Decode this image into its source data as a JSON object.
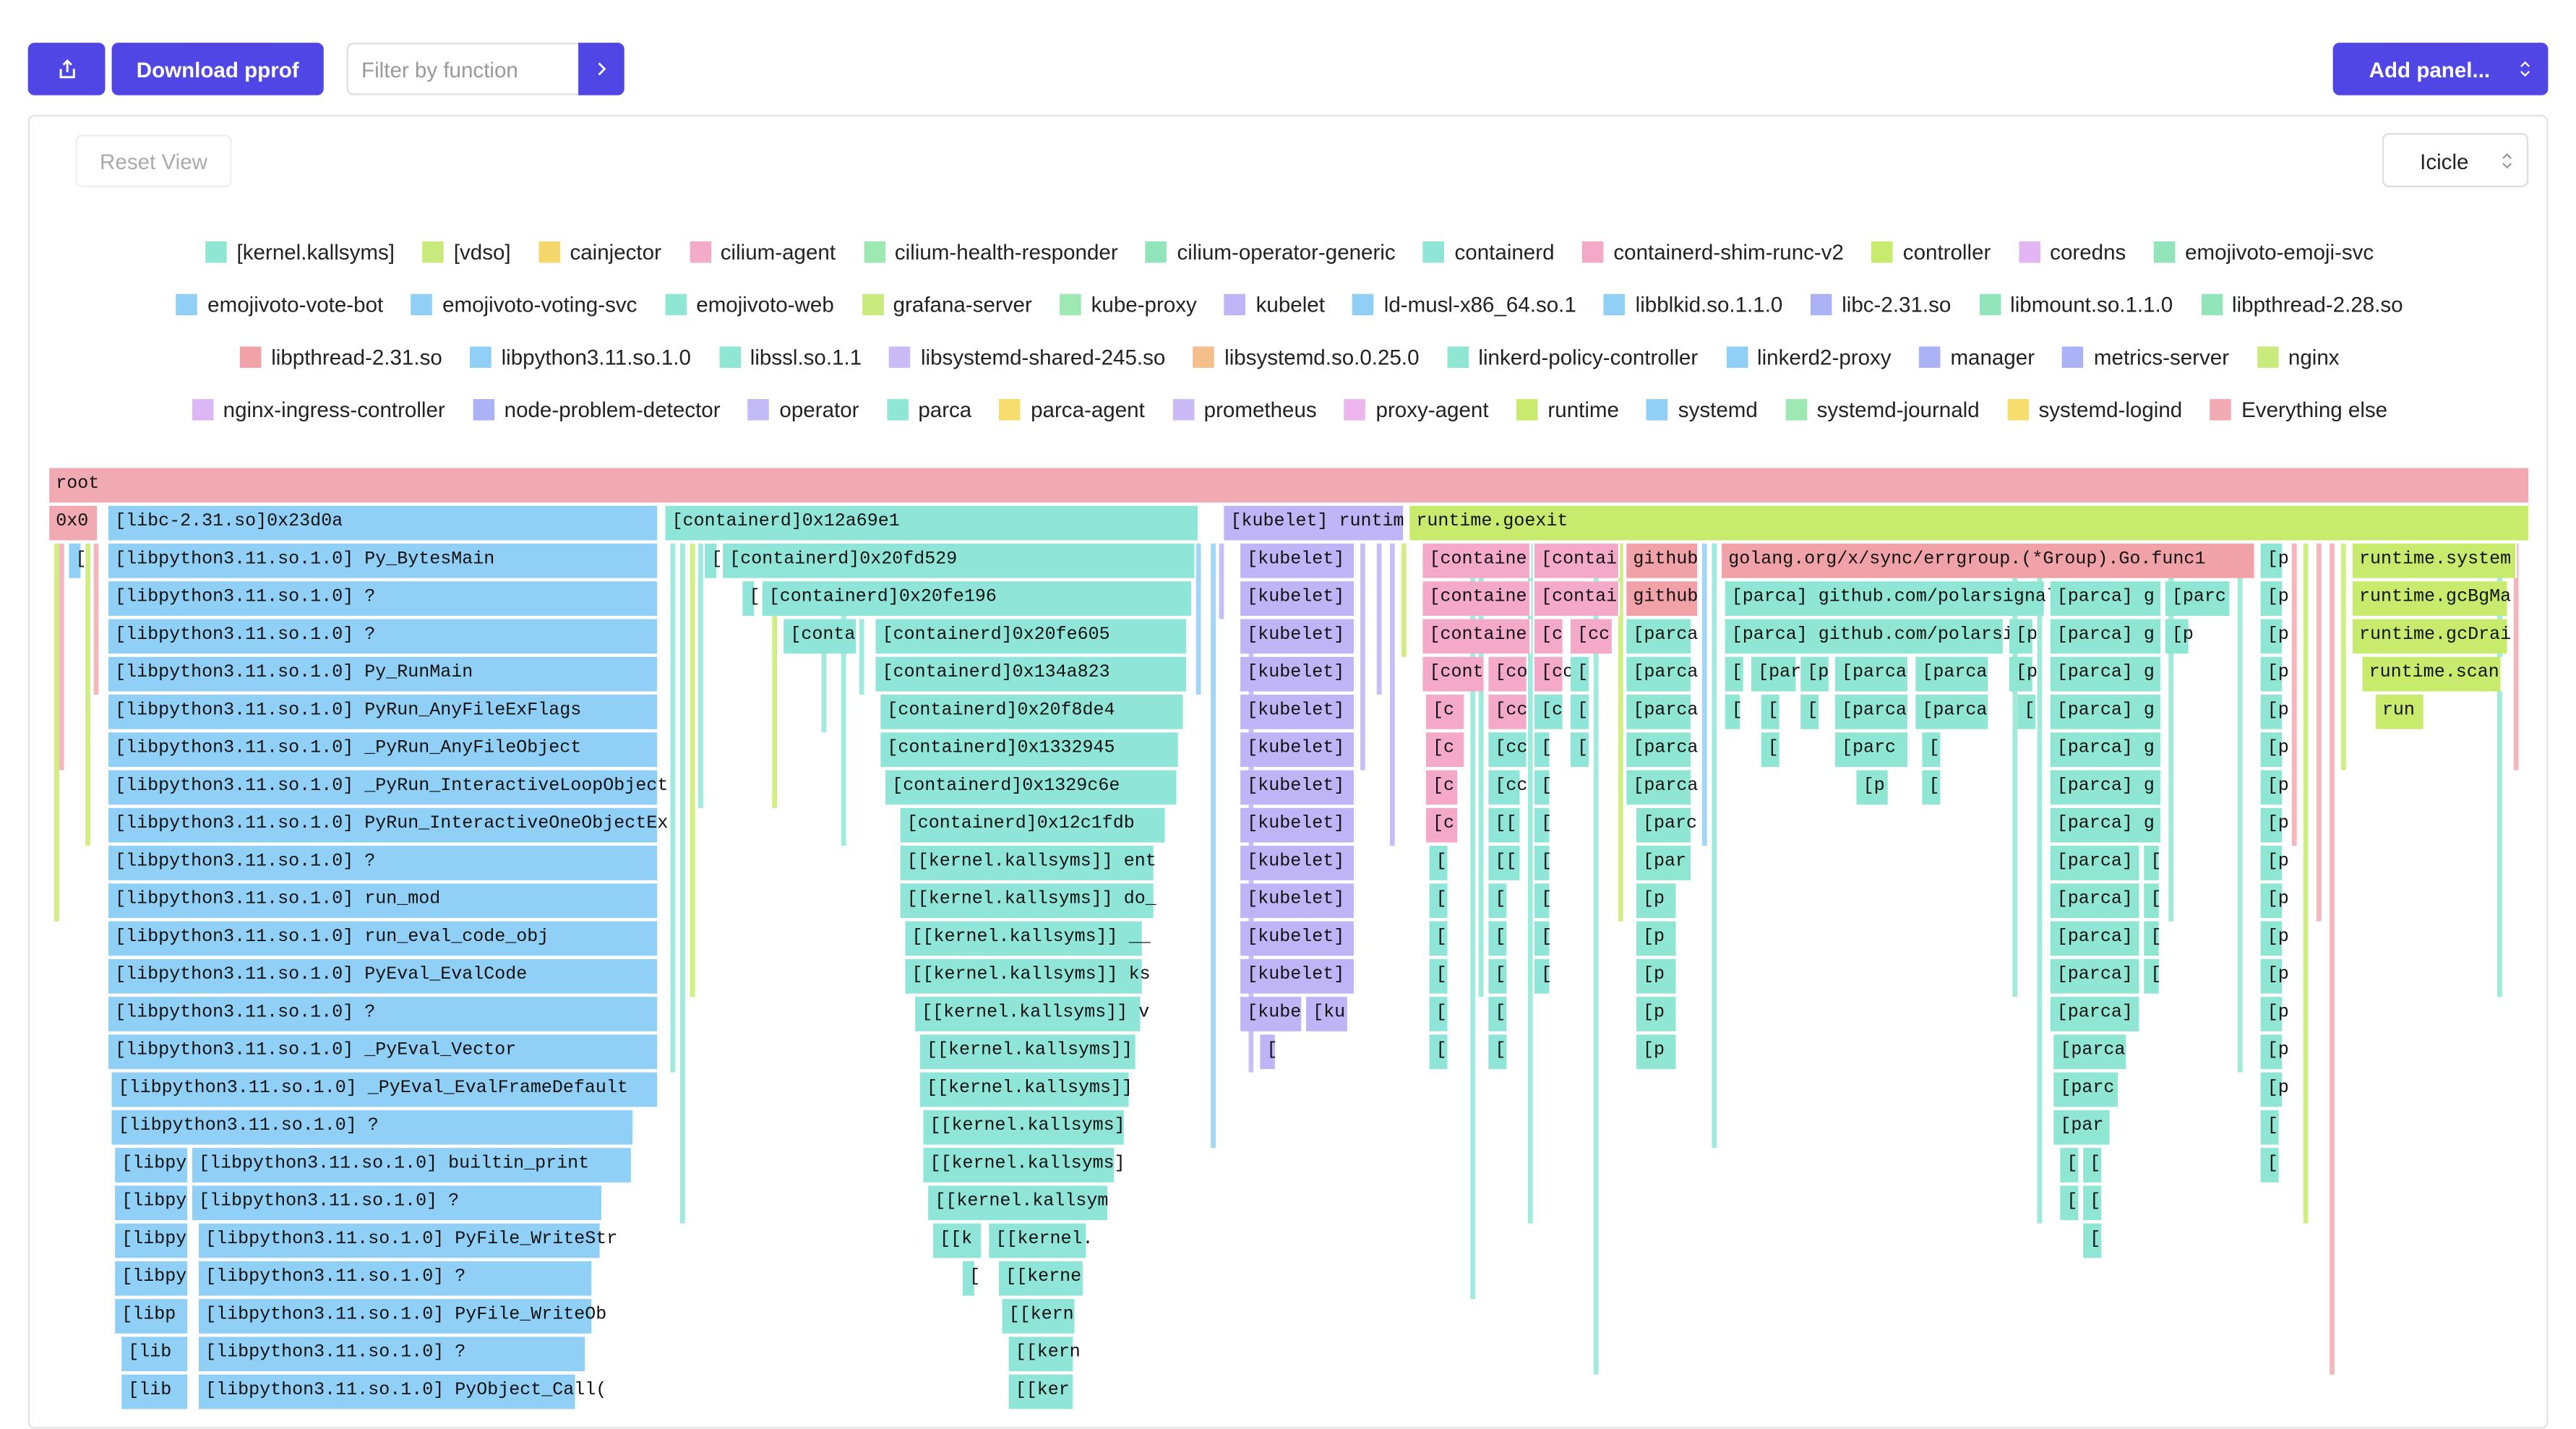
{
  "toolbar": {
    "download": "Download pprof",
    "filter_placeholder": "Filter by function",
    "add_panel": "Add panel..."
  },
  "panel": {
    "reset": "Reset View",
    "view": "Icicle"
  },
  "legend": {
    "rows": [
      [
        {
          "name": "[kernel.kallsyms]",
          "color": "#8fe6d2"
        },
        {
          "name": "[vdso]",
          "color": "#c9ea7c"
        },
        {
          "name": "cainjector",
          "color": "#f5d66c"
        },
        {
          "name": "cilium-agent",
          "color": "#f2abc9"
        },
        {
          "name": "cilium-health-responder",
          "color": "#9de8b3"
        },
        {
          "name": "cilium-operator-generic",
          "color": "#92e4bb"
        },
        {
          "name": "containerd",
          "color": "#8fe6d8"
        },
        {
          "name": "containerd-shim-runc-v2",
          "color": "#f4a9c8"
        },
        {
          "name": "controller",
          "color": "#c8eb6e"
        },
        {
          "name": "coredns",
          "color": "#e4b5f3"
        },
        {
          "name": "emojivoto-emoji-svc",
          "color": "#92e4bb"
        }
      ],
      [
        {
          "name": "emojivoto-vote-bot",
          "color": "#90cff6"
        },
        {
          "name": "emojivoto-voting-svc",
          "color": "#90cff6"
        },
        {
          "name": "emojivoto-web",
          "color": "#8fe6d2"
        },
        {
          "name": "grafana-server",
          "color": "#c9ea7c"
        },
        {
          "name": "kube-proxy",
          "color": "#9de8b3"
        },
        {
          "name": "kubelet",
          "color": "#bfb4f6"
        },
        {
          "name": "ld-musl-x86_64.so.1",
          "color": "#90cff6"
        },
        {
          "name": "libblkid.so.1.1.0",
          "color": "#90cff6"
        },
        {
          "name": "libc-2.31.so",
          "color": "#acb2f6"
        },
        {
          "name": "libmount.so.1.1.0",
          "color": "#92e4bb"
        },
        {
          "name": "libpthread-2.28.so",
          "color": "#92e4bb"
        }
      ],
      [
        {
          "name": "libpthread-2.31.so",
          "color": "#f1a2a8"
        },
        {
          "name": "libpython3.11.so.1.0",
          "color": "#90cff6"
        },
        {
          "name": "libssl.so.1.1",
          "color": "#8fe6d2"
        },
        {
          "name": "libsystemd-shared-245.so",
          "color": "#cabaf6"
        },
        {
          "name": "libsystemd.so.0.25.0",
          "color": "#f5bf8c"
        },
        {
          "name": "linkerd-policy-controller",
          "color": "#8fe6d2"
        },
        {
          "name": "linkerd2-proxy",
          "color": "#90cff6"
        },
        {
          "name": "manager",
          "color": "#acb2f6"
        },
        {
          "name": "metrics-server",
          "color": "#acb2f6"
        },
        {
          "name": "nginx",
          "color": "#c9ea7c"
        }
      ],
      [
        {
          "name": "nginx-ingress-controller",
          "color": "#dcb7f6"
        },
        {
          "name": "node-problem-detector",
          "color": "#acb2f6"
        },
        {
          "name": "operator",
          "color": "#c2baf6"
        },
        {
          "name": "parca",
          "color": "#8fe6d2"
        },
        {
          "name": "parca-agent",
          "color": "#f6dd6d"
        },
        {
          "name": "prometheus",
          "color": "#cabaf6"
        },
        {
          "name": "proxy-agent",
          "color": "#eeb6ee"
        },
        {
          "name": "runtime",
          "color": "#c8eb6e"
        },
        {
          "name": "systemd",
          "color": "#90cff6"
        },
        {
          "name": "systemd-journald",
          "color": "#9de8b3"
        },
        {
          "name": "systemd-logind",
          "color": "#f6dd6d"
        },
        {
          "name": "Everything else",
          "color": "#f2aab2"
        }
      ]
    ]
  },
  "flamegraph": {
    "rows": [
      [
        "root"
      ],
      [
        "0x0",
        "[libc-2.31.so]0x23d0a",
        "[containerd]0x12a69e1",
        "[kubelet] runtim",
        "runtime.goexit"
      ],
      [
        "[",
        "[libpython3.11.so.1.0] Py_BytesMain",
        "[",
        "[containerd]0x20fd529",
        "[kubelet]",
        "[containe",
        "[contai",
        "github",
        "golang.org/x/sync/errgroup.(*Group).Go.func1",
        "[p",
        "runtime.system"
      ],
      [
        "[libpython3.11.so.1.0] ?",
        "[",
        "[containerd]0x20fe196",
        "[kubelet]",
        "[containe",
        "[contai",
        "github",
        "[parca] github.com/polarsignal",
        "[parca] g",
        "[parc",
        "[p",
        "runtime.gcBgMa"
      ],
      [
        "[libpython3.11.so.1.0] ?",
        "[conta",
        "[containerd]0x20fe605",
        "[kubelet]",
        "[containe",
        "[c",
        "[cc",
        "[parca",
        "[parca] github.com/polarsi",
        "[p",
        "[parca] g",
        "[p",
        "[p",
        "runtime.gcDrai"
      ],
      [
        "[libpython3.11.so.1.0] Py_RunMain",
        "[containerd]0x134a823",
        "[kubelet]",
        "[cont",
        "[co",
        "[cc",
        "[",
        "[parca",
        "[",
        "[par",
        "[p",
        "[parca",
        "[parca",
        "[p",
        "[parca] g",
        "[p",
        "runtime.scan"
      ],
      [
        "[libpython3.11.so.1.0] PyRun_AnyFileExFlags",
        "[containerd]0x20f8de4",
        "[kubelet]",
        "[c",
        "[cc",
        "[c",
        "[",
        "[parca",
        "[",
        "[",
        "[",
        "[parca",
        "[parca",
        "[",
        "[parca] g",
        "[p",
        "run"
      ],
      [
        "[libpython3.11.so.1.0] _PyRun_AnyFileObject",
        "[containerd]0x1332945",
        "[kubelet]",
        "[c",
        "[cc",
        "[",
        "[",
        "[parca",
        "[",
        "[parc",
        "[",
        "[parca] g",
        "[p"
      ],
      [
        "[libpython3.11.so.1.0] _PyRun_InteractiveLoopObject",
        "[containerd]0x1329c6e",
        "[kubelet]",
        "[c",
        "[cc",
        "[",
        "[parca",
        "[p",
        "[",
        "[parca] g",
        "[p"
      ],
      [
        "[libpython3.11.so.1.0] PyRun_InteractiveOneObjectEx",
        "[containerd]0x12c1fdb",
        "[kubelet]",
        "[c",
        "[[",
        "[",
        "[parc",
        "[parca] g",
        "[p"
      ],
      [
        "[libpython3.11.so.1.0] ?",
        "[[kernel.kallsyms]] ent",
        "[kubelet]",
        "[",
        "[[",
        "[",
        "[par",
        "[parca]",
        "[",
        "[p"
      ],
      [
        "[libpython3.11.so.1.0] run_mod",
        "[[kernel.kallsyms]] do_",
        "[kubelet]",
        "[",
        "[",
        "[",
        "[p",
        "[parca]",
        "[",
        "[p"
      ],
      [
        "[libpython3.11.so.1.0] run_eval_code_obj",
        "[[kernel.kallsyms]] __",
        "[kubelet]",
        "[",
        "[",
        "[",
        "[p",
        "[parca]",
        "[",
        "[p"
      ],
      [
        "[libpython3.11.so.1.0] PyEval_EvalCode",
        "[[kernel.kallsyms]] ks",
        "[kubelet]",
        "[",
        "[",
        "[",
        "[p",
        "[parca]",
        "[",
        "[p"
      ],
      [
        "[libpython3.11.so.1.0] ?",
        "[[kernel.kallsyms]] v",
        "[kube",
        "[ku",
        "[",
        "[",
        "[p",
        "[parca]",
        "[p"
      ],
      [
        "[libpython3.11.so.1.0] _PyEval_Vector",
        "[[kernel.kallsyms]]",
        "[",
        "[",
        "[",
        "[p",
        "[parca",
        "[p"
      ],
      [
        "[libpython3.11.so.1.0] _PyEval_EvalFrameDefault",
        "[[kernel.kallsyms]]",
        "[parc",
        "[p"
      ],
      [
        "[libpython3.11.so.1.0] ?",
        "[[kernel.kallsyms]",
        "[par",
        "["
      ],
      [
        "[libpy",
        "[libpython3.11.so.1.0] builtin_print",
        "[[kernel.kallsyms]",
        "[",
        "[",
        "["
      ],
      [
        "[libpy",
        "[libpython3.11.so.1.0] ?",
        "[[kernel.kallsym",
        "[",
        "["
      ],
      [
        "[libpy",
        "[libpython3.11.so.1.0] PyFile_WriteStr",
        "[[k",
        "[[kernel.",
        "["
      ],
      [
        "[libpy",
        "[libpython3.11.so.1.0] ?",
        "[",
        "[[kerne"
      ],
      [
        "[libp",
        "[libpython3.11.so.1.0] PyFile_WriteOb",
        "[[kern"
      ],
      [
        "[lib",
        "[libpython3.11.so.1.0] ?",
        "[[kern"
      ],
      [
        "[lib",
        "[libpython3.11.so.1.0] PyObject_Call(",
        "[[ker"
      ]
    ]
  }
}
